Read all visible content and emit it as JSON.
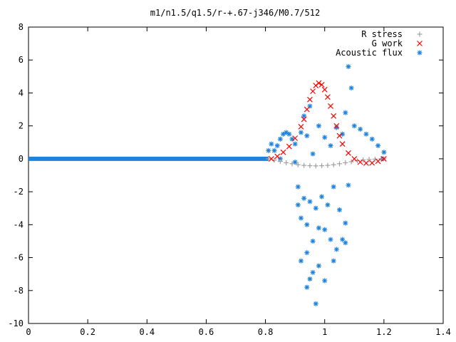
{
  "chart_data": {
    "type": "scatter",
    "title": "m1/n1.5/q1.5/r-+.67-j346/M0.7/512",
    "xlabel": "",
    "ylabel": "",
    "xlim": [
      0,
      1.4
    ],
    "ylim": [
      -10,
      8
    ],
    "x_ticks": [
      "0",
      "0.2",
      "0.4",
      "0.6",
      "0.8",
      "1",
      "1.2",
      "1.4"
    ],
    "y_ticks": [
      "8",
      "6",
      "4",
      "2",
      "0",
      "-2",
      "-4",
      "-6",
      "-8",
      "-10"
    ],
    "grid": false,
    "legend_position": "top-right",
    "series": [
      {
        "name": "R stress",
        "marker": "plus",
        "color": "#a0a0a0",
        "points": [
          [
            0.81,
            0.0
          ],
          [
            0.83,
            -0.08
          ],
          [
            0.85,
            -0.16
          ],
          [
            0.87,
            -0.24
          ],
          [
            0.89,
            -0.3
          ],
          [
            0.91,
            -0.36
          ],
          [
            0.93,
            -0.4
          ],
          [
            0.95,
            -0.42
          ],
          [
            0.97,
            -0.43
          ],
          [
            0.99,
            -0.42
          ],
          [
            1.01,
            -0.4
          ],
          [
            1.03,
            -0.36
          ],
          [
            1.05,
            -0.3
          ],
          [
            1.07,
            -0.24
          ],
          [
            1.09,
            -0.18
          ],
          [
            1.11,
            -0.12
          ],
          [
            1.13,
            -0.07
          ],
          [
            1.15,
            -0.04
          ],
          [
            1.17,
            -0.02
          ],
          [
            1.19,
            0.0
          ],
          [
            1.2,
            0.0
          ]
        ]
      },
      {
        "name": "G work",
        "marker": "cross",
        "color": "#ff0000",
        "points": [
          [
            0.82,
            0.0
          ],
          [
            0.84,
            0.15
          ],
          [
            0.86,
            0.4
          ],
          [
            0.88,
            0.75
          ],
          [
            0.9,
            1.25
          ],
          [
            0.92,
            1.95
          ],
          [
            0.93,
            2.4
          ],
          [
            0.94,
            3.0
          ],
          [
            0.95,
            3.6
          ],
          [
            0.96,
            4.1
          ],
          [
            0.97,
            4.45
          ],
          [
            0.98,
            4.6
          ],
          [
            0.99,
            4.5
          ],
          [
            1.0,
            4.2
          ],
          [
            1.01,
            3.75
          ],
          [
            1.02,
            3.2
          ],
          [
            1.03,
            2.6
          ],
          [
            1.04,
            2.0
          ],
          [
            1.05,
            1.4
          ],
          [
            1.06,
            0.9
          ],
          [
            1.08,
            0.35
          ],
          [
            1.1,
            0.0
          ],
          [
            1.12,
            -0.2
          ],
          [
            1.14,
            -0.26
          ],
          [
            1.16,
            -0.25
          ],
          [
            1.18,
            -0.15
          ],
          [
            1.2,
            0.0
          ]
        ]
      },
      {
        "name": "Acoustic flux",
        "marker": "star",
        "color": "#1e82dc",
        "line_segments": [
          {
            "x_start": 0.0,
            "x_end": 0.81,
            "y": 0.0
          },
          {
            "x_start": 1.19,
            "x_end": 1.2,
            "y": 0.0
          }
        ],
        "points": [
          [
            0.81,
            0.5
          ],
          [
            0.82,
            0.9
          ],
          [
            0.83,
            0.5
          ],
          [
            0.84,
            0.8
          ],
          [
            0.85,
            1.2
          ],
          [
            0.86,
            1.5
          ],
          [
            0.87,
            1.6
          ],
          [
            0.88,
            1.5
          ],
          [
            0.89,
            1.2
          ],
          [
            0.9,
            0.9
          ],
          [
            0.85,
            0.0
          ],
          [
            0.9,
            -0.2
          ],
          [
            0.92,
            1.6
          ],
          [
            0.93,
            2.6
          ],
          [
            0.94,
            1.4
          ],
          [
            0.95,
            3.2
          ],
          [
            0.96,
            0.3
          ],
          [
            0.98,
            2.0
          ],
          [
            1.0,
            1.3
          ],
          [
            1.02,
            0.8
          ],
          [
            1.04,
            1.9
          ],
          [
            1.06,
            1.5
          ],
          [
            1.07,
            2.8
          ],
          [
            1.08,
            5.6
          ],
          [
            1.09,
            4.3
          ],
          [
            1.1,
            2.0
          ],
          [
            1.12,
            1.8
          ],
          [
            1.14,
            1.5
          ],
          [
            1.16,
            1.2
          ],
          [
            1.18,
            0.8
          ],
          [
            1.2,
            0.4
          ],
          [
            0.91,
            -1.7
          ],
          [
            0.93,
            -2.4
          ],
          [
            0.95,
            -2.6
          ],
          [
            0.97,
            -3.0
          ],
          [
            0.99,
            -2.3
          ],
          [
            1.01,
            -2.8
          ],
          [
            1.03,
            -1.7
          ],
          [
            1.05,
            -3.1
          ],
          [
            1.07,
            -3.9
          ],
          [
            1.08,
            -1.6
          ],
          [
            0.91,
            -2.8
          ],
          [
            0.92,
            -3.6
          ],
          [
            0.94,
            -4.0
          ],
          [
            0.96,
            -5.0
          ],
          [
            0.98,
            -4.2
          ],
          [
            1.0,
            -4.3
          ],
          [
            1.02,
            -4.9
          ],
          [
            1.04,
            -5.5
          ],
          [
            1.06,
            -4.9
          ],
          [
            1.07,
            -5.1
          ],
          [
            0.92,
            -6.2
          ],
          [
            0.94,
            -5.7
          ],
          [
            0.96,
            -6.9
          ],
          [
            0.98,
            -6.5
          ],
          [
            1.0,
            -7.4
          ],
          [
            0.95,
            -7.3
          ],
          [
            0.94,
            -7.8
          ],
          [
            0.97,
            -8.8
          ],
          [
            1.03,
            -6.2
          ]
        ]
      }
    ]
  }
}
